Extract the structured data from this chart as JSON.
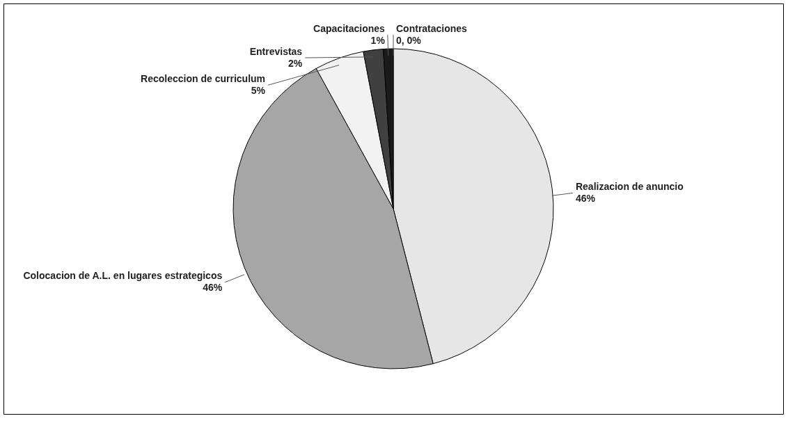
{
  "chart_data": {
    "type": "pie",
    "categories": [
      "Contrataciones",
      "Realizacion de anuncio",
      "Colocacion de A.L. en lugares estrategicos",
      "Recoleccion de curriculum",
      "Entrevistas",
      "Capacitaciones"
    ],
    "values": [
      0,
      46,
      46,
      5,
      2,
      1
    ],
    "colors": [
      "#000000",
      "#e6e6e6",
      "#a6a6a6",
      "#f2f2f2",
      "#404040",
      "#1a1a1a"
    ],
    "value_labels": [
      "0, 0%",
      "46%",
      "46%",
      "5%",
      "2%",
      "1%"
    ]
  }
}
